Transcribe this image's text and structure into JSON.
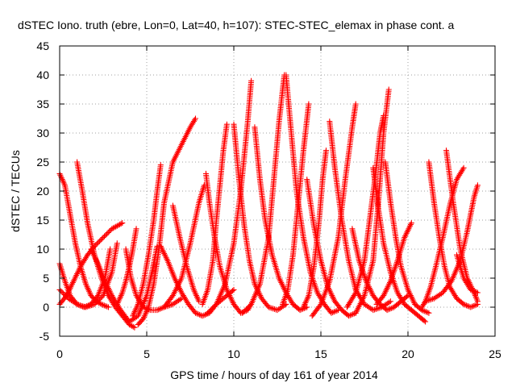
{
  "chart_data": {
    "type": "scatter",
    "title": "dSTEC Iono. truth (ebre, Lon=0, Lat=40, h=107): STEC-STEC_elemax in phase cont. a",
    "xlabel": "GPS time / hours of day 161 of year 2014",
    "ylabel": "dSTEC  / TECUs",
    "xlim": [
      0,
      25
    ],
    "ylim": [
      -5,
      45
    ],
    "xticks": [
      0,
      5,
      10,
      15,
      20,
      25
    ],
    "yticks": [
      -5,
      0,
      5,
      10,
      15,
      20,
      25,
      30,
      35,
      40,
      45
    ],
    "grid": true,
    "marker": "plus",
    "color": "#ff0000",
    "series": [
      {
        "x": [
          0.0,
          0.3,
          0.6,
          0.9,
          1.2,
          1.5,
          1.8,
          2.1,
          2.4,
          2.8
        ],
        "y": [
          23.0,
          21.0,
          16.0,
          11.0,
          7.0,
          4.0,
          2.0,
          1.0,
          0.5,
          0.0
        ]
      },
      {
        "x": [
          0.0,
          0.3,
          0.6,
          1.0,
          1.4,
          1.8,
          2.2,
          2.6,
          2.9
        ],
        "y": [
          7.5,
          4.5,
          2.0,
          0.5,
          0.0,
          0.5,
          2.0,
          5.0,
          10.0
        ]
      },
      {
        "x": [
          0.0,
          0.5,
          1.0,
          1.5,
          2.0,
          2.5,
          3.0,
          3.3
        ],
        "y": [
          3.0,
          1.5,
          0.5,
          0.0,
          0.5,
          2.0,
          6.0,
          11.0
        ]
      },
      {
        "x": [
          0.0,
          0.4,
          0.8,
          1.2,
          1.6,
          2.0,
          2.5,
          3.0,
          3.3,
          3.6
        ],
        "y": [
          0.5,
          2.0,
          4.5,
          7.0,
          9.0,
          10.5,
          12.0,
          13.5,
          14.0,
          14.5
        ]
      },
      {
        "x": [
          1.0,
          1.3,
          1.6,
          2.0,
          2.4,
          2.8,
          3.2,
          3.6,
          4.0,
          4.3
        ],
        "y": [
          25.0,
          20.0,
          14.5,
          9.0,
          5.0,
          2.0,
          0.0,
          -1.5,
          -3.0,
          -3.5
        ]
      },
      {
        "x": [
          1.8,
          2.2,
          2.6,
          3.0,
          3.5,
          4.0,
          4.5,
          5.0,
          5.3,
          5.6
        ],
        "y": [
          10.0,
          7.5,
          4.5,
          2.0,
          -0.5,
          -2.5,
          -1.5,
          2.0,
          6.0,
          10.5
        ]
      },
      {
        "x": [
          3.8,
          4.1,
          4.4,
          4.8,
          5.2,
          5.6,
          6.0,
          6.5,
          7.0
        ],
        "y": [
          10.0,
          5.0,
          2.0,
          0.0,
          -0.5,
          -0.5,
          0.0,
          0.5,
          1.5
        ]
      },
      {
        "x": [
          4.4,
          4.2,
          4.0,
          3.8,
          3.6,
          3.3
        ],
        "y": [
          13.5,
          10.0,
          7.0,
          4.5,
          2.5,
          0.5
        ]
      },
      {
        "x": [
          4.5,
          4.8,
          5.1,
          5.4,
          5.7,
          6.0,
          6.5,
          7.0,
          7.5,
          7.8
        ],
        "y": [
          -3.0,
          -2.0,
          0.0,
          4.0,
          10.0,
          18.0,
          25.0,
          28.0,
          31.0,
          32.5
        ]
      },
      {
        "x": [
          5.8,
          5.6,
          5.4,
          5.1,
          4.8,
          4.5,
          4.2
        ],
        "y": [
          24.5,
          20.0,
          15.0,
          9.0,
          4.0,
          0.5,
          -1.5
        ]
      },
      {
        "x": [
          5.8,
          6.2,
          6.6,
          7.0,
          7.4,
          7.8,
          8.2,
          8.6,
          9.0,
          9.6,
          10.0
        ],
        "y": [
          10.5,
          8.0,
          5.0,
          2.5,
          0.5,
          -1.0,
          -1.5,
          -1.0,
          0.5,
          2.0,
          3.0
        ]
      },
      {
        "x": [
          6.5,
          6.9,
          7.3,
          7.7,
          8.0
        ],
        "y": [
          17.5,
          12.0,
          7.0,
          3.0,
          1.0
        ]
      },
      {
        "x": [
          6.0,
          6.5,
          7.0,
          7.5,
          8.0,
          8.3
        ],
        "y": [
          0.0,
          2.0,
          5.0,
          11.0,
          18.0,
          21.0
        ]
      },
      {
        "x": [
          8.4,
          8.6,
          8.9,
          9.2,
          9.6,
          10.0,
          10.4,
          10.8,
          11.0
        ],
        "y": [
          23.0,
          18.0,
          12.0,
          7.0,
          3.0,
          0.5,
          -1.0,
          -0.5,
          0.5
        ]
      },
      {
        "x": [
          8.2,
          8.5,
          8.8,
          9.0,
          9.2,
          9.4,
          9.6
        ],
        "y": [
          0.5,
          3.0,
          8.0,
          15.0,
          21.0,
          27.0,
          31.5
        ]
      },
      {
        "x": [
          10.0,
          10.3,
          10.6,
          10.9,
          11.2,
          11.6,
          12.0,
          12.5,
          13.0
        ],
        "y": [
          31.5,
          22.0,
          14.0,
          8.0,
          4.0,
          1.5,
          0.0,
          -0.5,
          0.5
        ]
      },
      {
        "x": [
          8.5,
          9.0,
          9.5,
          10.0,
          10.4,
          10.8,
          11.0
        ],
        "y": [
          -1.0,
          0.5,
          4.0,
          11.0,
          20.0,
          32.0,
          39.0
        ]
      },
      {
        "x": [
          11.2,
          11.5,
          11.8,
          12.2,
          12.6,
          13.0,
          13.4,
          13.8,
          14.2
        ],
        "y": [
          31.0,
          22.0,
          15.0,
          9.0,
          5.0,
          2.5,
          0.5,
          -0.5,
          0.0
        ]
      },
      {
        "x": [
          10.5,
          11.0,
          11.5,
          12.0,
          12.3,
          12.6,
          12.9
        ],
        "y": [
          -1.0,
          0.5,
          4.0,
          12.0,
          22.0,
          32.0,
          40.0
        ]
      },
      {
        "x": [
          13.0,
          13.3,
          13.6,
          14.0,
          14.4,
          14.8,
          15.2,
          15.6,
          16.0
        ],
        "y": [
          40.0,
          30.0,
          20.0,
          12.0,
          6.0,
          2.5,
          0.5,
          -1.0,
          -0.5
        ]
      },
      {
        "x": [
          12.8,
          13.1,
          13.4,
          13.7,
          14.0,
          14.3
        ],
        "y": [
          0.5,
          3.0,
          9.0,
          18.0,
          27.0,
          35.0
        ]
      },
      {
        "x": [
          14.2,
          14.6,
          15.0,
          15.4,
          15.8,
          16.2,
          16.6,
          17.0
        ],
        "y": [
          22.0,
          14.0,
          8.0,
          3.5,
          1.0,
          -0.5,
          -1.5,
          -1.0
        ]
      },
      {
        "x": [
          14.0,
          14.3,
          14.6,
          14.9,
          15.1,
          15.3
        ],
        "y": [
          0.0,
          2.0,
          7.0,
          15.0,
          22.0,
          27.0
        ]
      },
      {
        "x": [
          15.5,
          15.8,
          16.2,
          16.6,
          17.0,
          17.5,
          18.0,
          18.5,
          19.0
        ],
        "y": [
          32.0,
          24.0,
          15.0,
          8.0,
          3.0,
          0.5,
          -0.5,
          0.0,
          1.0
        ]
      },
      {
        "x": [
          14.5,
          15.0,
          15.5,
          16.0,
          16.4,
          16.8,
          17.0
        ],
        "y": [
          -1.5,
          0.5,
          4.5,
          12.0,
          22.0,
          31.0,
          35.0
        ]
      },
      {
        "x": [
          16.8,
          17.2,
          17.6,
          18.0,
          18.4,
          18.8,
          19.2,
          19.6,
          20.0
        ],
        "y": [
          13.5,
          8.0,
          4.5,
          2.0,
          0.5,
          -0.5,
          0.0,
          1.0,
          2.0
        ]
      },
      {
        "x": [
          16.5,
          17.0,
          17.5,
          17.8,
          18.1,
          18.4,
          18.6
        ],
        "y": [
          0.0,
          2.5,
          8.0,
          15.0,
          22.0,
          30.0,
          33.0
        ]
      },
      {
        "x": [
          18.0,
          18.3,
          18.6,
          19.0,
          19.4,
          19.8,
          20.2,
          20.6,
          21.0
        ],
        "y": [
          24.0,
          17.0,
          11.0,
          6.0,
          2.5,
          0.5,
          -0.5,
          -1.5,
          -2.5
        ]
      },
      {
        "x": [
          17.0,
          17.5,
          18.0,
          18.3,
          18.6,
          18.9
        ],
        "y": [
          -1.0,
          2.0,
          8.0,
          18.0,
          30.0,
          37.5
        ]
      },
      {
        "x": [
          18.7,
          19.0,
          19.3,
          19.6,
          20.0,
          20.4,
          20.8,
          21.2
        ],
        "y": [
          25.0,
          18.0,
          12.0,
          7.0,
          3.0,
          0.5,
          -0.5,
          -1.0
        ]
      },
      {
        "x": [
          18.2,
          18.6,
          19.0,
          19.4,
          19.8,
          20.2
        ],
        "y": [
          0.5,
          2.0,
          4.5,
          8.0,
          12.0,
          14.5
        ]
      },
      {
        "x": [
          21.2,
          21.5,
          21.8,
          22.1,
          22.4,
          22.8,
          23.2,
          23.6,
          24.0
        ],
        "y": [
          25.0,
          18.0,
          12.0,
          7.0,
          3.5,
          1.5,
          0.5,
          0.0,
          0.5
        ]
      },
      {
        "x": [
          20.8,
          21.0,
          21.3,
          21.6,
          22.0,
          22.4,
          22.8,
          23.2
        ],
        "y": [
          0.0,
          1.0,
          3.5,
          7.0,
          12.0,
          17.5,
          22.0,
          24.0
        ]
      },
      {
        "x": [
          22.2,
          22.6,
          23.0,
          23.4,
          23.8,
          24.0
        ],
        "y": [
          27.0,
          18.0,
          10.0,
          5.0,
          2.5,
          1.0
        ]
      },
      {
        "x": [
          21.0,
          21.5,
          22.0,
          22.5,
          23.0,
          23.4,
          23.8,
          24.0
        ],
        "y": [
          1.0,
          1.5,
          2.5,
          4.5,
          8.0,
          13.0,
          19.0,
          21.0
        ]
      },
      {
        "x": [
          22.8,
          23.2,
          23.6,
          24.0
        ],
        "y": [
          9.0,
          5.0,
          3.0,
          2.5
        ]
      }
    ]
  }
}
